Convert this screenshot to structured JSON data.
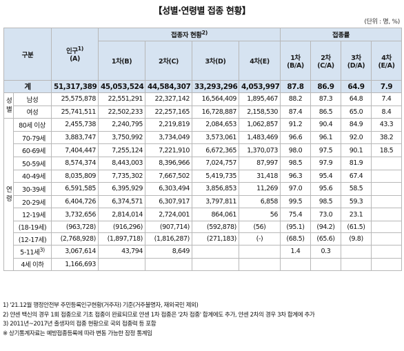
{
  "title": "【성별·연령별 접종 현황】",
  "unit": "(단위 : 명, %)",
  "header": {
    "category": "구분",
    "population": "인구",
    "population_sup": "1)",
    "population_sub": "(A)",
    "vaccinated_group": "접종자 현황",
    "vaccinated_sup": "2)",
    "rate_group": "접종률",
    "dose1": "1차(B)",
    "dose2": "2차(C)",
    "dose3": "3차(D)",
    "dose4": "4차(E)",
    "rate1_top": "1차",
    "rate1_bottom": "(B/A)",
    "rate2_top": "2차",
    "rate2_bottom": "(C/A)",
    "rate3_top": "3차",
    "rate3_bottom": "(D/A)",
    "rate4_top": "4차",
    "rate4_bottom": "(E/A)"
  },
  "total": {
    "label": "계",
    "population": "51,317,389",
    "d1": "45,053,524",
    "d2": "44,584,307",
    "d3": "33,293,296",
    "d4": "4,053,997",
    "r1": "87.8",
    "r2": "86.9",
    "r3": "64.9",
    "r4": "7.9"
  },
  "sex_group": {
    "line1": "성",
    "line2": "별"
  },
  "sex_rows": [
    {
      "label": "남성",
      "population": "25,575,878",
      "d1": "22,551,291",
      "d2": "22,327,142",
      "d3": "16,564,409",
      "d4": "1,895,467",
      "r1": "88.2",
      "r2": "87.3",
      "r3": "64.8",
      "r4": "7.4"
    },
    {
      "label": "여성",
      "population": "25,741,511",
      "d1": "22,502,233",
      "d2": "22,257,165",
      "d3": "16,728,887",
      "d4": "2,158,530",
      "r1": "87.4",
      "r2": "86.5",
      "r3": "65.0",
      "r4": "8.4"
    }
  ],
  "age_group": {
    "line1": "연",
    "line2": "령"
  },
  "age_rows": [
    {
      "label": "80세 이상",
      "population": "2,455,738",
      "d1": "2,240,795",
      "d2": "2,219,819",
      "d3": "2,084,653",
      "d4": "1,062,857",
      "r1": "91.2",
      "r2": "90.4",
      "r3": "84.9",
      "r4": "43.3"
    },
    {
      "label": "70-79세",
      "population": "3,883,747",
      "d1": "3,750,992",
      "d2": "3,734,049",
      "d3": "3,573,061",
      "d4": "1,483,469",
      "r1": "96.6",
      "r2": "96.1",
      "r3": "92.0",
      "r4": "38.2"
    },
    {
      "label": "60-69세",
      "population": "7,404,447",
      "d1": "7,255,124",
      "d2": "7,221,910",
      "d3": "6,672,365",
      "d4": "1,370,073",
      "r1": "98.0",
      "r2": "97.5",
      "r3": "90.1",
      "r4": "18.5"
    },
    {
      "label": "50-59세",
      "population": "8,574,374",
      "d1": "8,443,003",
      "d2": "8,396,966",
      "d3": "7,024,757",
      "d4": "87,997",
      "r1": "98.5",
      "r2": "97.9",
      "r3": "81.9",
      "r4": ""
    },
    {
      "label": "40-49세",
      "population": "8,035,809",
      "d1": "7,735,302",
      "d2": "7,667,502",
      "d3": "5,419,735",
      "d4": "31,418",
      "r1": "96.3",
      "r2": "95.4",
      "r3": "67.4",
      "r4": ""
    },
    {
      "label": "30-39세",
      "population": "6,591,585",
      "d1": "6,395,929",
      "d2": "6,303,494",
      "d3": "3,856,853",
      "d4": "11,269",
      "r1": "97.0",
      "r2": "95.6",
      "r3": "58.5",
      "r4": ""
    },
    {
      "label": "20-29세",
      "population": "6,404,726",
      "d1": "6,374,571",
      "d2": "6,307,917",
      "d3": "3,797,811",
      "d4": "6,858",
      "r1": "99.5",
      "r2": "98.5",
      "r3": "59.3",
      "r4": ""
    },
    {
      "label": "12-19세",
      "population": "3,732,656",
      "d1": "2,814,014",
      "d2": "2,724,001",
      "d3": "864,061",
      "d4": "56",
      "r1": "75.4",
      "r2": "73.0",
      "r3": "23.1",
      "r4": ""
    }
  ],
  "paren_rows": [
    {
      "label": "(18-19세)",
      "population": "(963,728)",
      "d1": "(916,296)",
      "d2": "(907,714)",
      "d3": "(592,878)",
      "d4": "(56)",
      "r1": "(95.1)",
      "r2": "(94.2)",
      "r3": "(61.5)",
      "r4": ""
    },
    {
      "label": "(12-17세)",
      "population": "(2,768,928)",
      "d1": "(1,897,718)",
      "d2": "(1,816,287)",
      "d3": "(271,183)",
      "d4": "(-)",
      "r1": "(68.5)",
      "r2": "(65.6)",
      "r3": "(9.8)",
      "r4": ""
    }
  ],
  "child_rows": [
    {
      "label": "5-11세",
      "label_sup": "3)",
      "population": "3,067,614",
      "d1": "43,794",
      "d2": "8,649",
      "d3": "",
      "d4": "",
      "r1": "1.4",
      "r2": "0.3",
      "r3": "",
      "r4": ""
    },
    {
      "label": "4세 이하",
      "label_sup": "",
      "population": "1,166,693",
      "d1": "",
      "d2": "",
      "d3": "",
      "d4": "",
      "r1": "",
      "r2": "",
      "r3": "",
      "r4": ""
    }
  ],
  "notes": [
    "1) '21.12월 행정안전부 주민등록인구현황(거주자) 기준(거주불명자, 재외국민 제외)",
    "2) 얀센 백신의 경우 1회 접종으로 기초 접종이 완료되므로 얀센 1차 접종은 '2차 접종' 합계에도 추가, 얀센 2차의 경우 3차 합계에 추가",
    "3) 2011년~2017년 출생자의 접종 현황으로 국외 접종력 등 포함",
    "※ 상기통계자료는 예방접종등록에 따라 변동 가능한 잠정 통계임"
  ]
}
